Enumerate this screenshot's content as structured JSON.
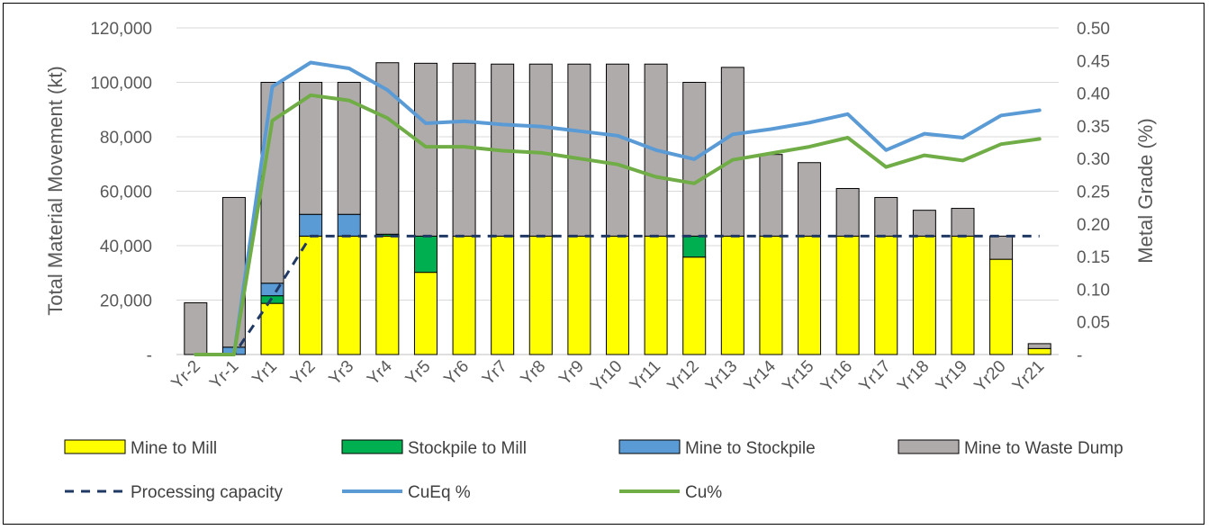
{
  "chart_data": {
    "type": "bar",
    "stacked": true,
    "title": "",
    "categories": [
      "Yr-2",
      "Yr-1",
      "Yr1",
      "Yr2",
      "Yr3",
      "Yr4",
      "Yr5",
      "Yr6",
      "Yr7",
      "Yr8",
      "Yr9",
      "Yr10",
      "Yr11",
      "Yr12",
      "Yr13",
      "Yr14",
      "Yr15",
      "Yr16",
      "Yr17",
      "Yr18",
      "Yr19",
      "Yr20",
      "Yr21"
    ],
    "ylabel": "Total Material Movement (kt)",
    "y2label": "Metal Grade (%)",
    "ylim": [
      0,
      120000
    ],
    "y2lim": [
      0,
      0.5
    ],
    "yticks": [
      "-",
      "20,000",
      "40,000",
      "60,000",
      "80,000",
      "100,000",
      "120,000"
    ],
    "y2ticks": [
      "-",
      "0.05",
      "0.10",
      "0.15",
      "0.20",
      "0.25",
      "0.30",
      "0.35",
      "0.40",
      "0.45",
      "0.50"
    ],
    "grid": true,
    "legend_position": "bottom",
    "bar_series": [
      {
        "name": "Mine to Mill",
        "color": "#FFFF00",
        "values": [
          0,
          0,
          18800,
          43500,
          43500,
          43500,
          30200,
          43500,
          43500,
          43500,
          43500,
          43500,
          43500,
          35800,
          43500,
          43500,
          43500,
          43500,
          43500,
          43500,
          43500,
          35000,
          2200
        ]
      },
      {
        "name": "Stockpile to Mill",
        "color": "#00B050",
        "values": [
          0,
          0,
          2800,
          0,
          0,
          700,
          13300,
          0,
          0,
          0,
          0,
          0,
          0,
          7700,
          0,
          0,
          0,
          0,
          0,
          0,
          0,
          0,
          0
        ]
      },
      {
        "name": "Mine to Stockpile",
        "color": "#5B9BD5",
        "values": [
          0,
          2700,
          4600,
          8000,
          8000,
          0,
          0,
          0,
          0,
          0,
          0,
          0,
          0,
          0,
          0,
          0,
          0,
          0,
          0,
          0,
          0,
          0,
          0
        ]
      },
      {
        "name": "Mine to Waste Dump",
        "color": "#B0ABAB",
        "values": [
          19000,
          55000,
          73800,
          48500,
          48500,
          63000,
          63500,
          63500,
          63200,
          63200,
          63200,
          63200,
          63200,
          56500,
          62000,
          30000,
          27000,
          17500,
          14200,
          9500,
          10200,
          8500,
          1800
        ]
      }
    ],
    "line_series": [
      {
        "name": "Processing capacity",
        "color": "#203864",
        "style": "dashed",
        "axis": "left",
        "values": [
          0,
          0,
          21000,
          43500,
          43500,
          43500,
          43500,
          43500,
          43500,
          43500,
          43500,
          43500,
          43500,
          43500,
          43500,
          43500,
          43500,
          43500,
          43500,
          43500,
          43500,
          43500,
          43500
        ]
      },
      {
        "name": "CuEq %",
        "color": "#5B9BD5",
        "style": "solid",
        "axis": "right",
        "values": [
          0,
          0,
          0.41,
          0.447,
          0.438,
          0.405,
          0.354,
          0.357,
          0.352,
          0.349,
          0.342,
          0.335,
          0.313,
          0.299,
          0.337,
          0.345,
          0.355,
          0.368,
          0.313,
          0.338,
          0.332,
          0.366,
          0.374
        ]
      },
      {
        "name": "Cu%",
        "color": "#70AD47",
        "style": "solid",
        "axis": "right",
        "values": [
          0,
          0,
          0.358,
          0.397,
          0.389,
          0.362,
          0.318,
          0.318,
          0.312,
          0.309,
          0.3,
          0.291,
          0.272,
          0.262,
          0.298,
          0.308,
          0.318,
          0.332,
          0.287,
          0.305,
          0.297,
          0.322,
          0.33
        ]
      }
    ]
  }
}
